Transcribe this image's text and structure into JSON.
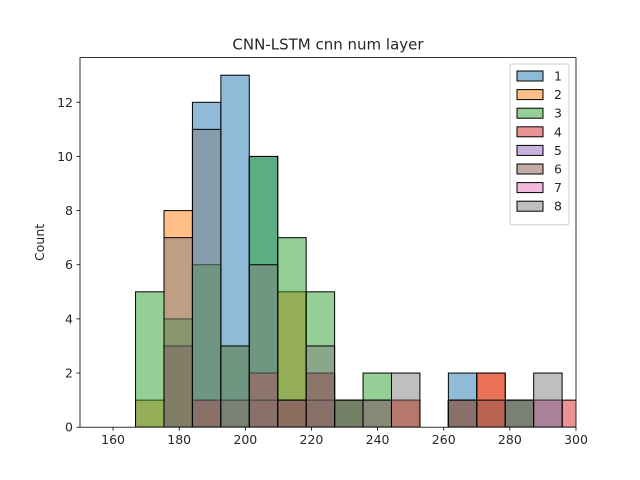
{
  "chart_data": {
    "type": "bar",
    "title": "CNN-LSTM cnn num layer",
    "xlabel": "",
    "ylabel": "Count",
    "xlim": [
      150,
      300
    ],
    "ylim": [
      0,
      13.65
    ],
    "xticks": [
      160,
      180,
      200,
      220,
      240,
      260,
      280,
      300
    ],
    "yticks": [
      0,
      2,
      4,
      6,
      8,
      10,
      12
    ],
    "bin_edges": [
      166.8,
      175.4,
      184.0,
      192.6,
      201.2,
      209.8,
      218.4,
      227.0,
      235.6,
      244.2,
      252.8,
      261.4,
      270.0,
      278.6,
      287.2,
      295.8,
      304.4
    ],
    "legend_position": "top-right",
    "grid": false,
    "series": [
      {
        "name": "1",
        "color": "#1f77b4",
        "values": [
          0,
          3,
          12,
          13,
          10,
          1,
          2,
          1,
          0,
          0,
          0,
          2,
          0,
          1,
          0,
          0
        ]
      },
      {
        "name": "2",
        "color": "#ff7f0e",
        "values": [
          1,
          8,
          0,
          0,
          0,
          5,
          0,
          0,
          0,
          1,
          0,
          0,
          2,
          0,
          1,
          0
        ]
      },
      {
        "name": "3",
        "color": "#2ca02c",
        "values": [
          5,
          4,
          6,
          3,
          10,
          7,
          5,
          1,
          2,
          0,
          0,
          1,
          0,
          1,
          0,
          0
        ]
      },
      {
        "name": "4",
        "color": "#d62728",
        "values": [
          0,
          0,
          1,
          0,
          2,
          1,
          2,
          0,
          0,
          1,
          0,
          1,
          2,
          0,
          0,
          1
        ]
      },
      {
        "name": "5",
        "color": "#9467bd",
        "values": [
          0,
          0,
          0,
          0,
          0,
          0,
          0,
          0,
          0,
          0,
          0,
          0,
          0,
          0,
          1,
          0
        ]
      },
      {
        "name": "6",
        "color": "#8c564b",
        "values": [
          0,
          3,
          1,
          1,
          1,
          1,
          1,
          1,
          1,
          0,
          0,
          1,
          1,
          1,
          0,
          0
        ]
      },
      {
        "name": "7",
        "color": "#e377c2",
        "values": [
          0,
          0,
          0,
          0,
          0,
          0,
          0,
          0,
          0,
          0,
          0,
          0,
          0,
          0,
          1,
          0
        ]
      },
      {
        "name": "8",
        "color": "#7f7f7f",
        "values": [
          0,
          7,
          11,
          3,
          6,
          1,
          3,
          0,
          1,
          2,
          0,
          1,
          0,
          1,
          2,
          0
        ]
      }
    ]
  }
}
